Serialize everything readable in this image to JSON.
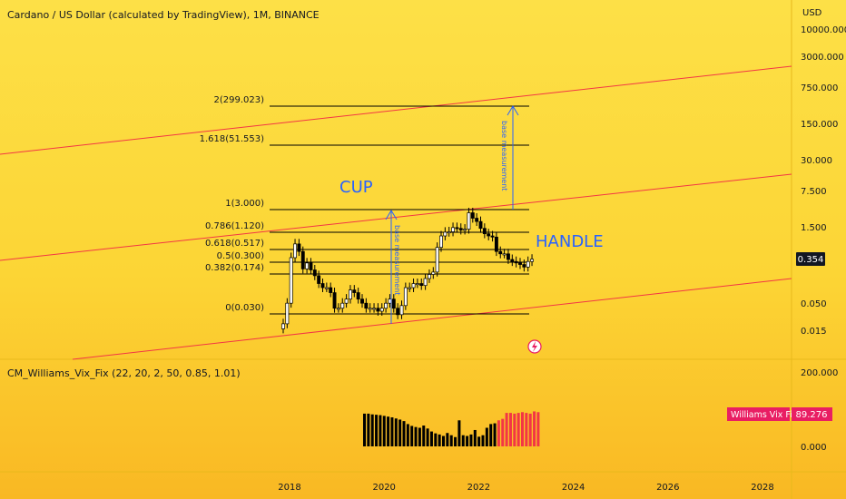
{
  "header": {
    "title": "Cardano / US Dollar (calculated by TradingView), 1M, BINANCE",
    "currency": "USD"
  },
  "price_axis": {
    "ticks": [
      "10000.000",
      "3000.000",
      "750.000",
      "150.000",
      "30.000",
      "7.500",
      "1.500",
      "0.050",
      "0.015"
    ],
    "last_price": "0.354"
  },
  "indicator": {
    "title": "CM_Williams_Vix_Fix (22, 20, 2, 50, 0.85, 1.01)",
    "ticks": [
      "200.000",
      "0.000"
    ],
    "badge_label": "Williams Vix Fix",
    "badge_value": "89.276"
  },
  "time_axis": {
    "ticks": [
      "2018",
      "2020",
      "2022",
      "2024",
      "2026",
      "2028"
    ]
  },
  "annotations": {
    "cup": "CUP",
    "handle": "HANDLE",
    "base1": "base measurement",
    "base2": "base measurement"
  },
  "chart_data": {
    "type": "candlestick",
    "title": "Cardano / US Dollar (calculated by TradingView), 1M, BINANCE",
    "y_scale": "log",
    "y_unit": "USD",
    "y_ticks": [
      10000,
      3000,
      750,
      150,
      30,
      7.5,
      1.5,
      0.05,
      0.015
    ],
    "x_ticks": [
      2018,
      2020,
      2022,
      2024,
      2026,
      2028
    ],
    "last_price": 0.354,
    "fib_levels": [
      {
        "label": "2(299.023)",
        "ratio": 2,
        "value": 299.023
      },
      {
        "label": "1.618(51.553)",
        "ratio": 1.618,
        "value": 51.553
      },
      {
        "label": "1(3.000)",
        "ratio": 1,
        "value": 3.0
      },
      {
        "label": "0.786(1.120)",
        "ratio": 0.786,
        "value": 1.12
      },
      {
        "label": "0.618(0.517)",
        "ratio": 0.618,
        "value": 0.517
      },
      {
        "label": "0.5(0.300)",
        "ratio": 0.5,
        "value": 0.3
      },
      {
        "label": "0.382(0.174)",
        "ratio": 0.382,
        "value": 0.174
      },
      {
        "label": "0(0.030)",
        "ratio": 0,
        "value": 0.03
      }
    ],
    "close_series": [
      0.02,
      0.05,
      0.38,
      0.7,
      0.5,
      0.23,
      0.3,
      0.22,
      0.17,
      0.12,
      0.1,
      0.1,
      0.08,
      0.04,
      0.04,
      0.05,
      0.06,
      0.09,
      0.08,
      0.06,
      0.05,
      0.04,
      0.04,
      0.04,
      0.035,
      0.04,
      0.05,
      0.06,
      0.04,
      0.03,
      0.045,
      0.1,
      0.1,
      0.12,
      0.12,
      0.11,
      0.15,
      0.18,
      0.2,
      0.6,
      1.0,
      1.18,
      1.2,
      1.45,
      1.4,
      1.3,
      1.35,
      2.8,
      2.2,
      1.9,
      1.4,
      1.1,
      1.0,
      0.95,
      0.5,
      0.45,
      0.45,
      0.35,
      0.32,
      0.3,
      0.28,
      0.25,
      0.32,
      0.354
    ],
    "indicator": {
      "name": "CM_Williams_Vix_Fix",
      "params": [
        22,
        20,
        2,
        50,
        0.85,
        1.01
      ],
      "last_value": 89.276,
      "y_ticks": [
        200,
        0
      ],
      "values": [
        88,
        88,
        86,
        85,
        84,
        82,
        80,
        78,
        75,
        72,
        68,
        60,
        55,
        52,
        50,
        56,
        48,
        40,
        35,
        32,
        28,
        36,
        30,
        25,
        70,
        30,
        28,
        32,
        44,
        26,
        30,
        50,
        60,
        62,
        70,
        74,
        90,
        90,
        88,
        90,
        92,
        90,
        88,
        94,
        92
      ],
      "highlight_from_index": 34
    },
    "annotations": [
      "CUP",
      "HANDLE",
      "base measurement",
      "base measurement"
    ]
  },
  "colors": {
    "background": "#fcd535",
    "candle": "#000000",
    "trend_line": "#f23645",
    "measure": "#2962ff",
    "text_blue": "#2962ff",
    "badge": "#e91e63",
    "histogram_red": "#f23645"
  }
}
